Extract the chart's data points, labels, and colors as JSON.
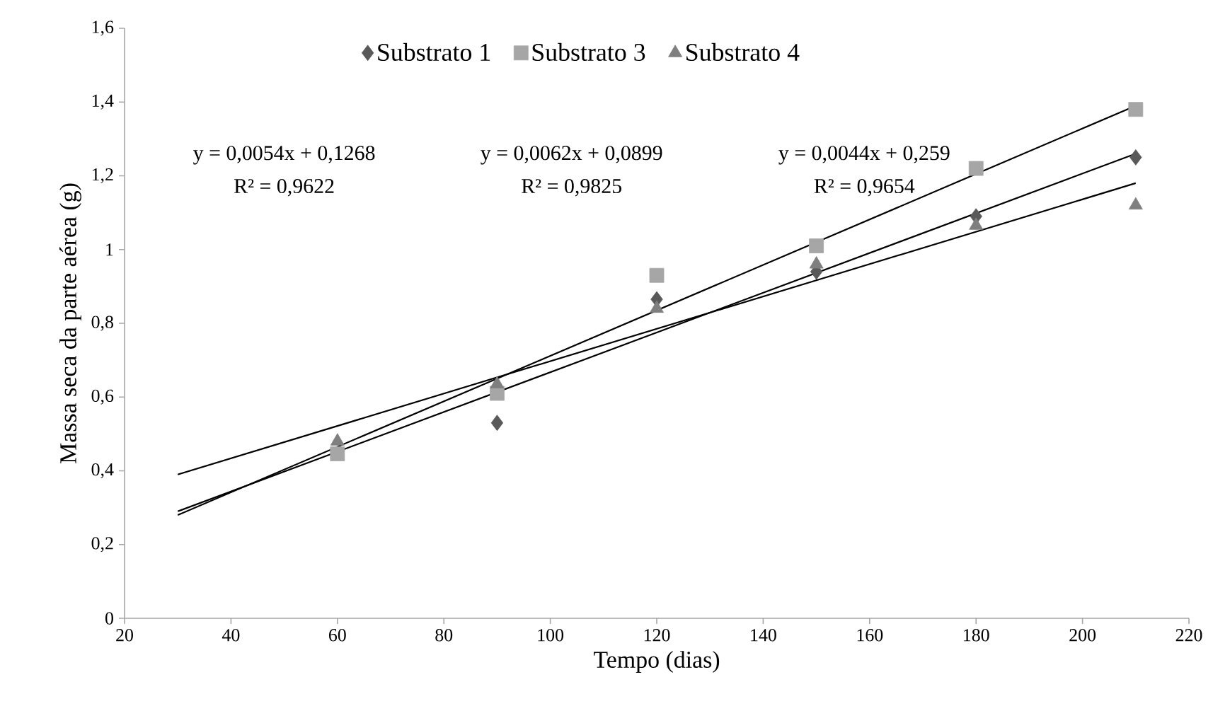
{
  "chart_data": {
    "type": "scatter",
    "xlabel": "Tempo (dias)",
    "ylabel": "Massa seca da parte aérea (g)",
    "xlim": [
      20,
      220
    ],
    "xticks": [
      20,
      40,
      60,
      80,
      100,
      120,
      140,
      160,
      180,
      200,
      220
    ],
    "ylim": [
      0,
      1.6
    ],
    "yticks": [
      0,
      {
        "value": 0.2,
        "label": "0,2"
      },
      {
        "value": 0.4,
        "label": "0,4"
      },
      {
        "value": 0.6,
        "label": "0,6"
      },
      {
        "value": 0.8,
        "label": "0,8"
      },
      1,
      {
        "value": 1.2,
        "label": "1,2"
      },
      {
        "value": 1.4,
        "label": "1,4"
      },
      {
        "value": 1.6,
        "label": "1,6"
      }
    ],
    "grid": false,
    "legend": "top",
    "series": [
      {
        "name": "Substrato 1",
        "marker": "diamond",
        "color": "#595959",
        "x": [
          90,
          120,
          150,
          180,
          210
        ],
        "values": [
          0.53,
          0.865,
          0.94,
          1.09,
          1.25
        ]
      },
      {
        "name": "Substrato 3",
        "marker": "square",
        "color": "#a6a6a6",
        "x": [
          60,
          90,
          120,
          150,
          180,
          210
        ],
        "values": [
          0.446,
          0.61,
          0.93,
          1.01,
          1.22,
          1.38
        ]
      },
      {
        "name": "Substrato 4",
        "marker": "triangle",
        "color": "#7f7f7f",
        "x": [
          60,
          90,
          120,
          150,
          180,
          210
        ],
        "values": [
          0.48,
          0.635,
          0.84,
          0.96,
          1.065,
          1.12
        ]
      },
      {
        "type": "line",
        "marker": "none",
        "color": "#000000",
        "x": [
          30,
          210
        ],
        "values": [
          0.29,
          1.26
        ]
      },
      {
        "type": "line",
        "marker": "none",
        "color": "#000000",
        "x": [
          30,
          210
        ],
        "values": [
          0.28,
          1.39
        ]
      },
      {
        "type": "line",
        "marker": "none",
        "color": "#000000",
        "x": [
          30,
          210
        ],
        "values": [
          0.39,
          1.18
        ]
      }
    ],
    "annotations": [
      "y = 0,0054x + 0,1268",
      "R² = 0,9622",
      "y = 0,0062x + 0,0899",
      "R² = 0,9825",
      "y = 0,0044x + 0,259",
      "R² = 0,9654"
    ]
  }
}
